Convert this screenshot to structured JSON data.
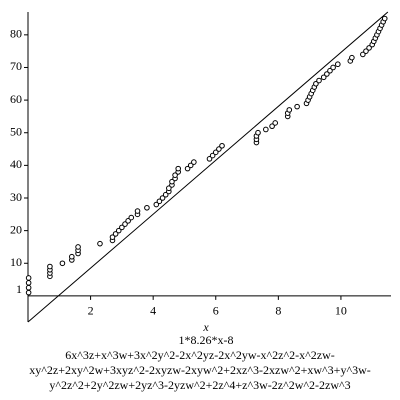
{
  "chart_data": {
    "type": "scatter",
    "xlabel": "x",
    "line_label": "1*8.26*x-8",
    "caption_lines": [
      "6x^3z+x^3w+3x^2y^2-2x^2yz-2x^2yw-x^2z^2-x^2zw-",
      "xy^2z+2xy^2w+3xyz^2-2xyzw-2xyw^2+2xz^3-2xzw^2+xw^3+y^3w-",
      "y^2z^2+2y^2zw+2yz^3-2yzw^2+2z^4+z^3w-2z^2w^2-2zw^3"
    ],
    "stray_label": "1",
    "xlim": [
      0,
      11.6
    ],
    "ylim": [
      -8,
      87
    ],
    "xticks": [
      2,
      4,
      6,
      8,
      10
    ],
    "yticks": [
      10,
      20,
      30,
      40,
      50,
      60,
      70,
      80
    ],
    "color": "#000000",
    "line": {
      "x": [
        0,
        11.5
      ],
      "values": [
        -8,
        86.99
      ]
    },
    "x": [
      0.02,
      0.02,
      0.02,
      0.02,
      0.7,
      0.7,
      0.7,
      0.7,
      1.1,
      1.4,
      1.4,
      1.6,
      1.6,
      1.6,
      2.3,
      2.7,
      2.7,
      2.8,
      2.9,
      3.0,
      3.1,
      3.2,
      3.3,
      3.5,
      3.5,
      3.8,
      4.1,
      4.2,
      4.3,
      4.4,
      4.5,
      4.5,
      4.6,
      4.6,
      4.7,
      4.7,
      4.8,
      4.8,
      5.1,
      5.2,
      5.3,
      5.8,
      5.9,
      6.0,
      6.1,
      6.2,
      7.3,
      7.3,
      7.3,
      7.35,
      7.6,
      7.8,
      7.9,
      8.3,
      8.3,
      8.35,
      8.6,
      8.9,
      8.95,
      9.0,
      9.05,
      9.1,
      9.15,
      9.2,
      9.3,
      9.45,
      9.55,
      9.65,
      9.75,
      9.9,
      10.3,
      10.35,
      10.7,
      10.8,
      10.9,
      11.0,
      11.05,
      11.1,
      11.15,
      11.2,
      11.25,
      11.3,
      11.35,
      11.4
    ],
    "values": [
      1,
      2.5,
      4,
      5.5,
      6,
      7,
      8,
      9,
      10,
      11,
      12,
      13,
      14,
      15,
      16,
      17,
      18,
      19,
      20,
      21,
      22,
      23,
      24,
      25,
      26,
      27,
      28,
      29,
      30,
      31,
      32,
      33,
      34,
      35,
      36,
      37,
      38,
      39,
      39,
      40,
      41,
      42,
      43,
      44,
      45,
      46,
      47,
      48,
      49,
      50,
      51,
      52,
      53,
      55,
      56,
      57,
      58,
      59,
      60,
      61,
      62,
      63,
      64,
      65,
      66,
      67,
      68,
      69,
      70,
      71,
      72,
      73,
      74,
      75,
      76,
      77,
      78,
      79,
      80,
      81,
      82,
      83,
      84,
      85
    ]
  }
}
